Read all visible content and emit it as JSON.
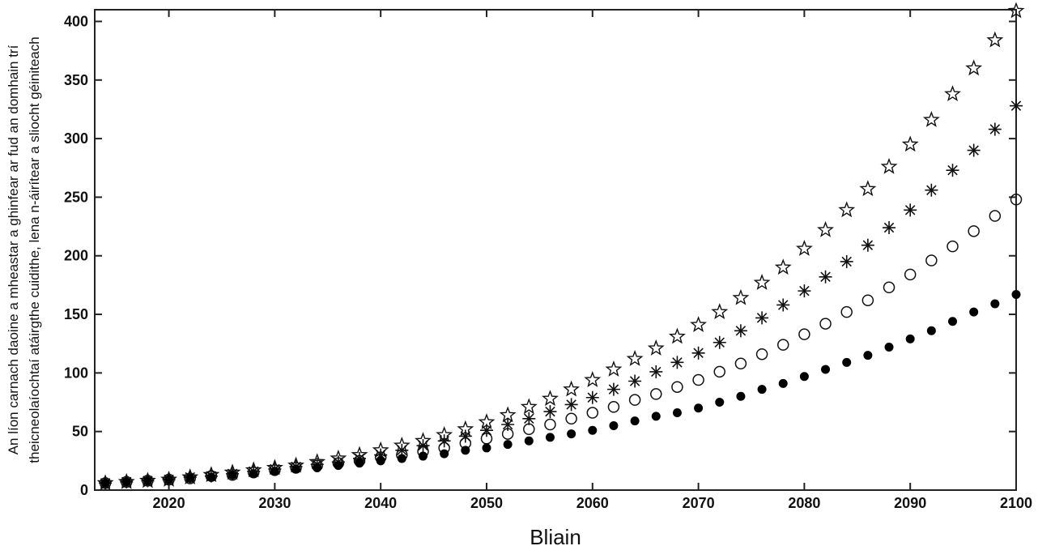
{
  "chart_data": {
    "type": "scatter",
    "title": "",
    "xlabel": "Bliain",
    "ylabel_line1": "An líon carnach daoine a mheastar a ghinfear ar fud an domhain trí",
    "ylabel_line2": "theicneolaíochtaí atáirgthe cuidithe, lena n-áirítear a sliocht géiniteach",
    "xlim": [
      2013,
      2100
    ],
    "ylim": [
      0,
      410
    ],
    "x_ticks": [
      2020,
      2030,
      2040,
      2050,
      2060,
      2070,
      2080,
      2090,
      2100
    ],
    "y_ticks": [
      0,
      50,
      100,
      150,
      200,
      250,
      300,
      350,
      400
    ],
    "grid": false,
    "x": [
      2014,
      2016,
      2018,
      2020,
      2022,
      2024,
      2026,
      2028,
      2030,
      2032,
      2034,
      2036,
      2038,
      2040,
      2042,
      2044,
      2046,
      2048,
      2050,
      2052,
      2054,
      2056,
      2058,
      2060,
      2062,
      2064,
      2066,
      2068,
      2070,
      2072,
      2074,
      2076,
      2078,
      2080,
      2082,
      2084,
      2086,
      2088,
      2090,
      2092,
      2094,
      2096,
      2098,
      2100
    ],
    "series": [
      {
        "marker": "filled-circle",
        "values": [
          6,
          7,
          8,
          9,
          10,
          11,
          13,
          14,
          16,
          18,
          19,
          21,
          23,
          25,
          27,
          29,
          31,
          34,
          36,
          39,
          42,
          45,
          48,
          51,
          55,
          59,
          63,
          66,
          70,
          75,
          80,
          86,
          91,
          97,
          103,
          109,
          115,
          122,
          129,
          136,
          144,
          152,
          159,
          167
        ]
      },
      {
        "marker": "open-circle",
        "values": [
          6,
          7,
          8,
          9,
          10,
          12,
          13,
          15,
          17,
          19,
          21,
          23,
          25,
          28,
          30,
          33,
          36,
          40,
          44,
          48,
          52,
          56,
          61,
          66,
          71,
          77,
          82,
          88,
          94,
          101,
          108,
          116,
          124,
          133,
          142,
          152,
          162,
          173,
          184,
          196,
          208,
          221,
          234,
          248
        ]
      },
      {
        "marker": "asterisk",
        "values": [
          6,
          7,
          8,
          9,
          11,
          12,
          14,
          16,
          18,
          20,
          22,
          24,
          27,
          30,
          34,
          38,
          42,
          46,
          51,
          56,
          61,
          67,
          73,
          79,
          86,
          93,
          101,
          109,
          117,
          126,
          136,
          147,
          158,
          170,
          182,
          195,
          209,
          224,
          239,
          256,
          273,
          290,
          308,
          328
        ]
      },
      {
        "marker": "star",
        "values": [
          6,
          7,
          8,
          9,
          11,
          13,
          15,
          17,
          19,
          21,
          24,
          27,
          30,
          34,
          38,
          42,
          47,
          52,
          58,
          64,
          71,
          78,
          86,
          94,
          103,
          112,
          121,
          131,
          141,
          152,
          164,
          177,
          190,
          206,
          222,
          239,
          257,
          276,
          295,
          316,
          338,
          360,
          384,
          409
        ]
      }
    ]
  }
}
